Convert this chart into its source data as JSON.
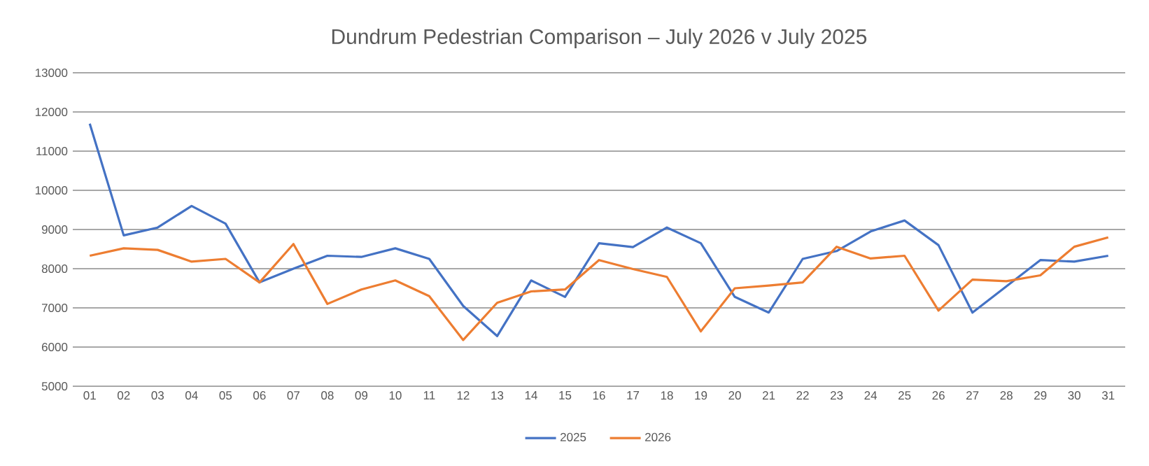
{
  "chart_data": {
    "type": "line",
    "title": "Dundrum Pedestrian Comparison – July 2026 v July 2025",
    "categories": [
      "01",
      "02",
      "03",
      "04",
      "05",
      "06",
      "07",
      "08",
      "09",
      "10",
      "11",
      "12",
      "13",
      "14",
      "15",
      "16",
      "17",
      "18",
      "19",
      "20",
      "21",
      "22",
      "23",
      "24",
      "25",
      "26",
      "27",
      "28",
      "29",
      "30",
      "31"
    ],
    "series": [
      {
        "name": "2025",
        "color": "#4472c4",
        "values": [
          11700,
          8850,
          9050,
          9600,
          9150,
          7650,
          8000,
          8330,
          8300,
          8520,
          8250,
          7050,
          6280,
          7700,
          7280,
          8650,
          8550,
          9050,
          8650,
          7280,
          6880,
          8250,
          8450,
          8950,
          9230,
          8600,
          6880,
          7550,
          8220,
          8180,
          8330
        ]
      },
      {
        "name": "2026",
        "color": "#ed7d31",
        "values": [
          8330,
          8520,
          8480,
          8180,
          8250,
          7650,
          8630,
          7100,
          7470,
          7700,
          7300,
          6180,
          7130,
          7420,
          7470,
          8220,
          7990,
          7790,
          6400,
          7500,
          7570,
          7650,
          8560,
          8260,
          8330,
          6930,
          7720,
          7680,
          7830,
          8560,
          8800
        ]
      }
    ],
    "ylim": [
      5000,
      13000
    ],
    "yticks": [
      5000,
      6000,
      7000,
      8000,
      9000,
      10000,
      11000,
      12000,
      13000
    ],
    "grid": "y",
    "legend": "bottom",
    "marker": "none",
    "line_style": "solid"
  }
}
